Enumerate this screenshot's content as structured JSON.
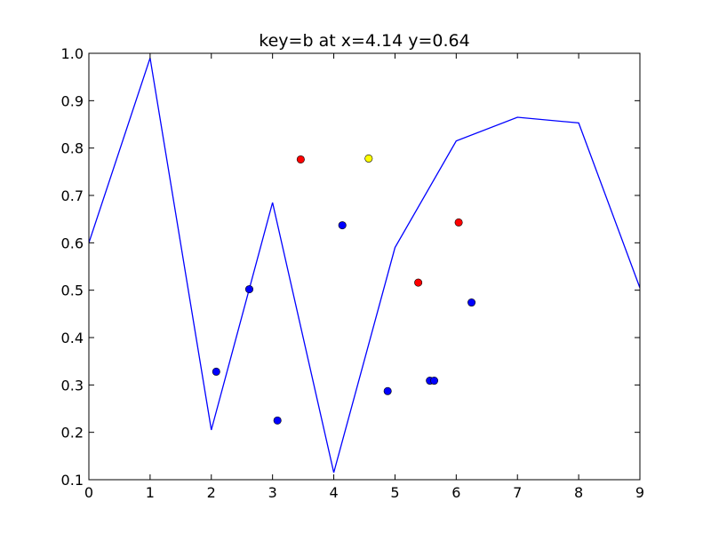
{
  "chart_data": {
    "type": "line+scatter",
    "title": "key=b at x=4.14 y=0.64",
    "xlabel": "",
    "ylabel": "",
    "xlim": [
      0,
      9
    ],
    "ylim": [
      0.1,
      1.0
    ],
    "x_ticks": [
      "0",
      "1",
      "2",
      "3",
      "4",
      "5",
      "6",
      "7",
      "8",
      "9"
    ],
    "y_ticks": [
      "0.1",
      "0.2",
      "0.3",
      "0.4",
      "0.5",
      "0.6",
      "0.7",
      "0.8",
      "0.9",
      "1.0"
    ],
    "grid": false,
    "line": {
      "color": "#0000ff",
      "x": [
        0,
        1,
        2,
        3,
        4,
        5,
        6,
        7,
        8,
        9
      ],
      "y": [
        0.6,
        0.99,
        0.205,
        0.685,
        0.115,
        0.59,
        0.815,
        0.865,
        0.853,
        0.505
      ]
    },
    "points": [
      {
        "x": 2.08,
        "y": 0.328,
        "color": "#0000ff"
      },
      {
        "x": 2.62,
        "y": 0.502,
        "color": "#0000ff"
      },
      {
        "x": 3.08,
        "y": 0.225,
        "color": "#0000ff"
      },
      {
        "x": 3.46,
        "y": 0.776,
        "color": "#ff0000"
      },
      {
        "x": 4.14,
        "y": 0.637,
        "color": "#0000ff"
      },
      {
        "x": 4.57,
        "y": 0.778,
        "color": "#ffff00"
      },
      {
        "x": 4.88,
        "y": 0.287,
        "color": "#0000ff"
      },
      {
        "x": 5.38,
        "y": 0.516,
        "color": "#ff0000"
      },
      {
        "x": 5.57,
        "y": 0.309,
        "color": "#0000ff"
      },
      {
        "x": 5.64,
        "y": 0.309,
        "color": "#0000ff"
      },
      {
        "x": 6.04,
        "y": 0.643,
        "color": "#ff0000"
      },
      {
        "x": 6.25,
        "y": 0.474,
        "color": "#0000ff"
      }
    ]
  }
}
